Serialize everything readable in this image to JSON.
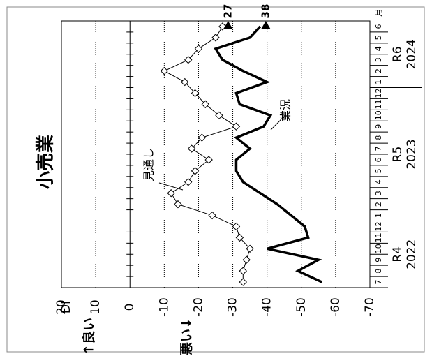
{
  "chart_data": {
    "type": "line",
    "title": "小売業",
    "y_label": "DI",
    "good_label": "↑良い",
    "bad_label": "悪い↓",
    "x_unit": "月",
    "categories": [
      "7",
      "8",
      "9",
      "10",
      "11",
      "12",
      "1",
      "2",
      "3",
      "4",
      "5",
      "6",
      "7",
      "8",
      "9",
      "10",
      "11",
      "12",
      "1",
      "2",
      "3",
      "4",
      "5",
      "6"
    ],
    "groups": [
      {
        "era": "R4",
        "year": "2022"
      },
      {
        "era": "R5",
        "year": "2023"
      },
      {
        "era": "R6",
        "year": "2024"
      }
    ],
    "ylim": [
      -70,
      20
    ],
    "yticks": [
      20,
      10,
      0,
      -10,
      -20,
      -30,
      -40,
      -50,
      -60,
      -70
    ],
    "grid": true,
    "series": [
      {
        "name": "業況",
        "color": "#000000",
        "values": [
          -56,
          -49,
          -55,
          -40,
          -52,
          -51,
          -47,
          -43,
          -38,
          -33,
          -31,
          -31,
          -35,
          -31,
          -39,
          -41,
          -32,
          -31,
          -40,
          -33,
          -27,
          -25,
          -35,
          -38
        ],
        "end_label": "38"
      },
      {
        "name": "見通し",
        "color": "#000000",
        "marker": "diamond",
        "values": [
          -33,
          -33,
          -34,
          -35,
          -32,
          -31,
          -24,
          -14,
          -12,
          -17,
          -19,
          -23,
          -18,
          -21,
          -31,
          -26,
          -22,
          -19,
          -16,
          -10,
          -17,
          -20,
          -25,
          -27
        ],
        "end_label": "27"
      }
    ]
  }
}
